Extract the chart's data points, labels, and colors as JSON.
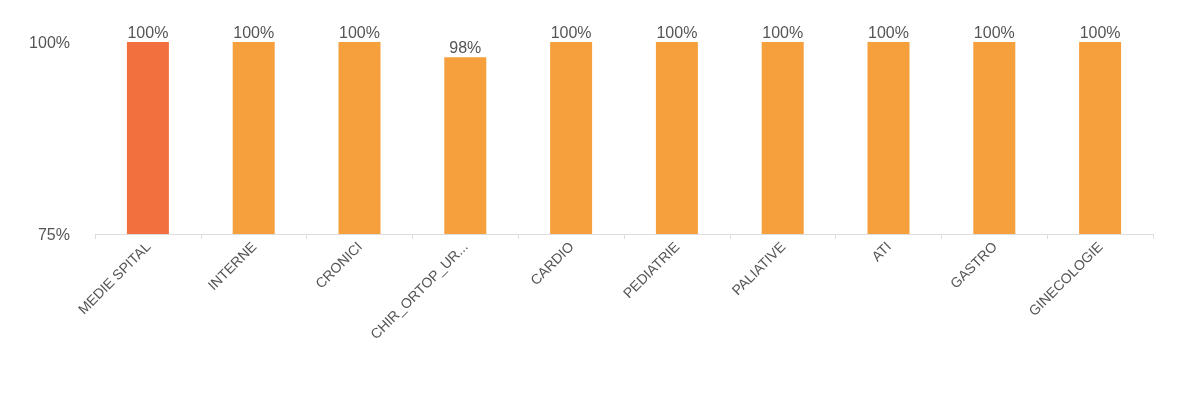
{
  "chart_data": {
    "type": "bar",
    "categories": [
      "MEDIE SPITAL",
      "INTERNE",
      "CRONICI",
      "CHIR_ORTOP_UR...",
      "CARDIO",
      "PEDIATRIE",
      "PALIATIVE",
      "ATI",
      "GASTRO",
      "GINECOLOGIE"
    ],
    "values": [
      100,
      100,
      100,
      98,
      100,
      100,
      100,
      100,
      100,
      100
    ],
    "value_labels": [
      "100%",
      "100%",
      "100%",
      "98%",
      "100%",
      "100%",
      "100%",
      "100%",
      "100%",
      "100%"
    ],
    "colors": [
      "#f2703e",
      "#f5a03c",
      "#f5a03c",
      "#f5a03c",
      "#f5a03c",
      "#f5a03c",
      "#f5a03c",
      "#f5a03c",
      "#f5a03c",
      "#f5a03c"
    ],
    "ylim": [
      75,
      100
    ],
    "yticks": [
      {
        "value": 75,
        "label": "75%"
      },
      {
        "value": 100,
        "label": "100%"
      }
    ],
    "grid": false
  }
}
